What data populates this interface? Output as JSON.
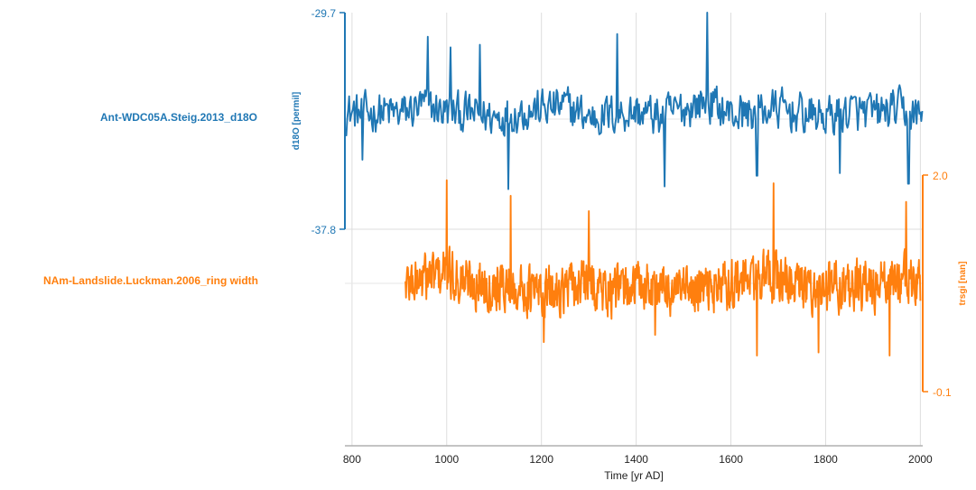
{
  "chart_data": {
    "type": "line",
    "layout": "stacked-multi-axis",
    "xlabel": "Time [yr AD]",
    "xlim": [
      785,
      2005
    ],
    "x_ticks": [
      800,
      1000,
      1200,
      1400,
      1600,
      1800,
      2000
    ],
    "x_tick_labels": [
      "800",
      "1000",
      "1200",
      "1400",
      "1600",
      "1800",
      "2000"
    ],
    "grid": true,
    "series": [
      {
        "name": "Ant-WDC05A.Steig.2013_d18O",
        "color": "#1f77b4",
        "ylabel": "d18O [permil]",
        "y_axis_side": "left",
        "ylim": [
          -37.8,
          -29.7
        ],
        "y_tick_labels": [
          "-29.7",
          "-37.8"
        ],
        "x_range": [
          786,
          2005
        ],
        "step_years": 2,
        "anchors": [
          [
            786,
            -33.4
          ],
          [
            820,
            -33.5
          ],
          [
            860,
            -33.4
          ],
          [
            900,
            -33.5
          ],
          [
            950,
            -33.2
          ],
          [
            1000,
            -33.4
          ],
          [
            1050,
            -33.5
          ],
          [
            1100,
            -33.6
          ],
          [
            1150,
            -33.4
          ],
          [
            1200,
            -33.3
          ],
          [
            1250,
            -33.2
          ],
          [
            1300,
            -33.6
          ],
          [
            1350,
            -33.5
          ],
          [
            1400,
            -33.4
          ],
          [
            1450,
            -33.6
          ],
          [
            1500,
            -33.3
          ],
          [
            1550,
            -33.0
          ],
          [
            1600,
            -33.5
          ],
          [
            1650,
            -33.4
          ],
          [
            1700,
            -33.3
          ],
          [
            1750,
            -33.5
          ],
          [
            1800,
            -33.6
          ],
          [
            1850,
            -33.4
          ],
          [
            1900,
            -33.5
          ],
          [
            1950,
            -33.3
          ],
          [
            2005,
            -33.6
          ]
        ],
        "noise_amplitude": 1.05,
        "peaks": [
          [
            822,
            -35.2
          ],
          [
            960,
            -30.6
          ],
          [
            1008,
            -31.0
          ],
          [
            1070,
            -30.9
          ],
          [
            1130,
            -36.3
          ],
          [
            1360,
            -30.5
          ],
          [
            1460,
            -36.2
          ],
          [
            1550,
            -29.7
          ],
          [
            1655,
            -35.8
          ],
          [
            1830,
            -35.7
          ],
          [
            1975,
            -36.1
          ]
        ]
      },
      {
        "name": "NAm-Landslide.Luckman.2006_ring width",
        "color": "#ff7f0e",
        "ylabel": "trsgi [nan]",
        "y_axis_side": "right",
        "ylim": [
          -0.1,
          2.0
        ],
        "y_tick_labels": [
          "2.0",
          "-0.1"
        ],
        "x_range": [
          913,
          2000
        ],
        "step_years": 1,
        "anchors": [
          [
            913,
            0.95
          ],
          [
            950,
            1.0
          ],
          [
            1000,
            1.05
          ],
          [
            1050,
            0.95
          ],
          [
            1100,
            0.95
          ],
          [
            1150,
            0.9
          ],
          [
            1200,
            0.85
          ],
          [
            1250,
            0.9
          ],
          [
            1300,
            0.95
          ],
          [
            1350,
            0.85
          ],
          [
            1400,
            0.95
          ],
          [
            1450,
            0.9
          ],
          [
            1500,
            0.85
          ],
          [
            1550,
            0.9
          ],
          [
            1600,
            0.95
          ],
          [
            1650,
            1.0
          ],
          [
            1700,
            1.0
          ],
          [
            1750,
            0.9
          ],
          [
            1800,
            0.9
          ],
          [
            1850,
            0.95
          ],
          [
            1900,
            0.9
          ],
          [
            1950,
            1.0
          ],
          [
            2000,
            0.95
          ]
        ],
        "noise_amplitude": 0.33,
        "peaks": [
          [
            1000,
            1.95
          ],
          [
            1135,
            1.8
          ],
          [
            1205,
            0.38
          ],
          [
            1300,
            1.65
          ],
          [
            1440,
            0.45
          ],
          [
            1655,
            0.25
          ],
          [
            1690,
            1.92
          ],
          [
            1785,
            0.28
          ],
          [
            1935,
            0.25
          ],
          [
            1970,
            1.74
          ]
        ]
      }
    ]
  }
}
